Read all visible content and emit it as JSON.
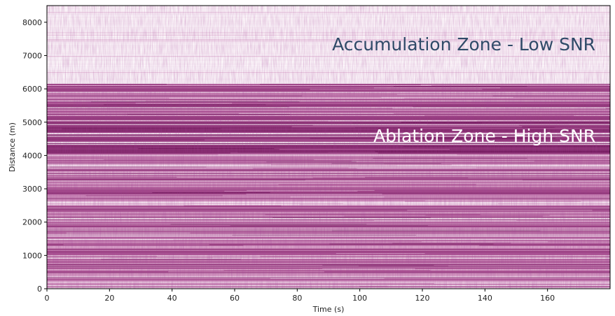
{
  "chart_data": {
    "type": "heatmap",
    "xlabel": "Time (s)",
    "ylabel": "Distance (m)",
    "xlim": [
      0,
      180
    ],
    "ylim": [
      0,
      8500
    ],
    "xticks": [
      0,
      20,
      40,
      60,
      80,
      100,
      120,
      140,
      160
    ],
    "yticks": [
      0,
      1000,
      2000,
      3000,
      4000,
      5000,
      6000,
      7000,
      8000
    ],
    "colormap": [
      "#ffffff",
      "#f3e2ee",
      "#d9a3c9",
      "#a84e8f",
      "#6e1559"
    ],
    "distance_profile": [
      {
        "from": 0,
        "to": 6150,
        "level": "high"
      },
      {
        "from": 6150,
        "to": 8500,
        "level": "low"
      }
    ],
    "annotations": [
      {
        "text": "Accumulation Zone - Low SNR",
        "color": "#2f4a68",
        "at": {
          "x": 178,
          "y": 7350
        }
      },
      {
        "text": "Ablation Zone - High SNR",
        "color": "#ffffff",
        "at": {
          "x": 178,
          "y": 4600
        }
      }
    ],
    "grid": false
  }
}
